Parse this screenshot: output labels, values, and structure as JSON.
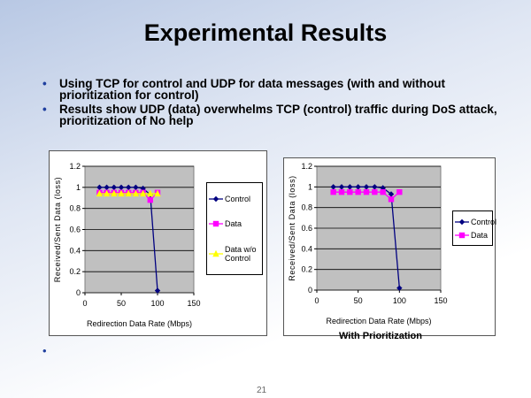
{
  "slide": {
    "title": "Experimental Results",
    "bullets": [
      "Using TCP for control and UDP for data messages (with and without prioritization for control)",
      "Results show UDP (data) overwhelms TCP (control) traffic during DoS attack, prioritization of No help"
    ],
    "page_number": "21"
  },
  "chart_data": [
    {
      "type": "line",
      "x_label": "Redirection Data Rate (Mbps)",
      "y_label": "Received/Sent Data (loss)",
      "x": [
        20,
        30,
        40,
        50,
        60,
        70,
        80,
        90,
        100
      ],
      "series": [
        {
          "name": "Control",
          "color": "#000080",
          "marker": "diamond",
          "values": [
            1,
            1,
            1,
            1,
            1,
            1,
            0.99,
            0.93,
            0.02
          ]
        },
        {
          "name": "Data",
          "color": "#ff00ff",
          "marker": "square",
          "values": [
            0.95,
            0.95,
            0.95,
            0.95,
            0.95,
            0.95,
            0.95,
            0.88,
            0.95
          ]
        },
        {
          "name": "Data w/o Control",
          "color": "#ffff00",
          "marker": "triangle",
          "values": [
            0.94,
            0.94,
            0.94,
            0.94,
            0.94,
            0.94,
            0.94,
            0.94,
            0.94
          ]
        }
      ],
      "xlim": [
        0,
        150
      ],
      "xticks": [
        0,
        50,
        100,
        150
      ],
      "ylim": [
        0,
        1.2
      ],
      "yticks": [
        0,
        0.2,
        0.4,
        0.6,
        0.8,
        1,
        1.2
      ],
      "grid": true,
      "legend": "right"
    },
    {
      "type": "line",
      "caption": "With Prioritization",
      "x_label": "Redirection Data Rate (Mbps)",
      "y_label": "Received/Sent Data (loss)",
      "x": [
        20,
        30,
        40,
        50,
        60,
        70,
        80,
        90,
        100
      ],
      "series": [
        {
          "name": "Control",
          "color": "#000080",
          "marker": "diamond",
          "values": [
            1,
            1,
            1,
            1,
            1,
            1,
            0.99,
            0.93,
            0.02
          ]
        },
        {
          "name": "Data",
          "color": "#ff00ff",
          "marker": "square",
          "values": [
            0.95,
            0.95,
            0.95,
            0.95,
            0.95,
            0.95,
            0.95,
            0.88,
            0.95
          ]
        }
      ],
      "xlim": [
        0,
        150
      ],
      "xticks": [
        0,
        50,
        100,
        150
      ],
      "ylim": [
        0,
        1.2
      ],
      "yticks": [
        0,
        0.2,
        0.4,
        0.6,
        0.8,
        1,
        1.2
      ],
      "grid": true,
      "legend": "right"
    }
  ]
}
